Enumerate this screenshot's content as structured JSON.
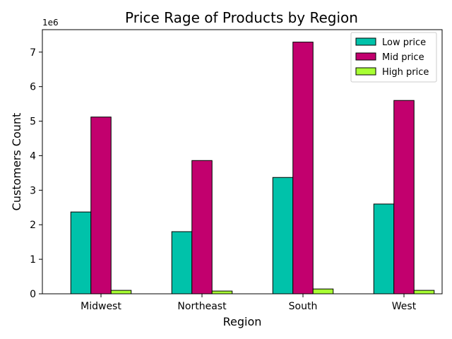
{
  "chart_data": {
    "type": "bar",
    "title": "Price Rage of Products by Region",
    "xlabel": "Region",
    "ylabel": "Customers Count",
    "y_offset_label": "1e6",
    "y_scale": 1000000,
    "categories": [
      "Midwest",
      "Northeast",
      "South",
      "West"
    ],
    "series": [
      {
        "name": "Low price",
        "color": "#00c2aa",
        "values": [
          2370000,
          1800000,
          3370000,
          2600000
        ]
      },
      {
        "name": "Mid price",
        "color": "#c2006e",
        "values": [
          5120000,
          3860000,
          7290000,
          5600000
        ]
      },
      {
        "name": "High price",
        "color": "#a8ff33",
        "values": [
          100000,
          80000,
          140000,
          100000
        ]
      }
    ],
    "ylim": [
      0,
      7650000
    ],
    "yticks": [
      0,
      1,
      2,
      3,
      4,
      5,
      6,
      7
    ],
    "grid": false,
    "legend_position": "top-right"
  }
}
